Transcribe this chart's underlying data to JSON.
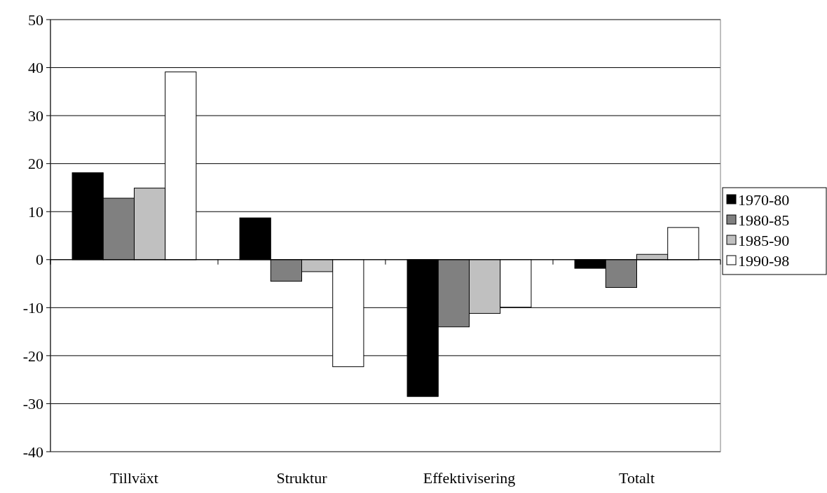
{
  "chart_data": {
    "type": "bar",
    "categories": [
      "Tillväxt",
      "Struktur",
      "Effektivisering",
      "Totalt"
    ],
    "series": [
      {
        "name": "1970-80",
        "color": "#000000",
        "values": [
          18.1,
          8.7,
          -28.5,
          -1.8
        ]
      },
      {
        "name": "1980-85",
        "color": "#808080",
        "values": [
          12.8,
          -4.5,
          -14,
          -5.8
        ]
      },
      {
        "name": "1985-90",
        "color": "#c0c0c0",
        "values": [
          14.9,
          -2.5,
          -11.2,
          1.1
        ]
      },
      {
        "name": "1990-98",
        "color": "#ffffff",
        "values": [
          39.1,
          -22.3,
          -9.9,
          6.7
        ]
      }
    ],
    "ylim": [
      -40,
      50
    ],
    "yticks": [
      -40,
      -30,
      -20,
      -10,
      0,
      10,
      20,
      30,
      40,
      50
    ],
    "grid": "y",
    "legend": "right"
  }
}
